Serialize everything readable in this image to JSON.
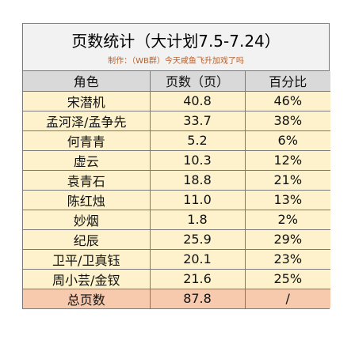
{
  "title": "页数统计（大计划7.5-7.24）",
  "subtitle": "制作：（WB群）今天咸鱼飞升加戏了吗",
  "headers": [
    "角色",
    "页数（页）",
    "百分比"
  ],
  "rows": [
    {
      "role": "宋潜机",
      "pages": "40.8",
      "percent": "46%"
    },
    {
      "role": "孟河泽/孟争先",
      "pages": "33.7",
      "percent": "38%"
    },
    {
      "role": "何青青",
      "pages": "5.2",
      "percent": "6%"
    },
    {
      "role": "虚云",
      "pages": "10.3",
      "percent": "12%"
    },
    {
      "role": "袁青石",
      "pages": "18.8",
      "percent": "21%"
    },
    {
      "role": "陈红烛",
      "pages": "11.0",
      "percent": "13%"
    },
    {
      "role": "妙烟",
      "pages": "1.8",
      "percent": "2%"
    },
    {
      "role": "纪辰",
      "pages": "25.9",
      "percent": "29%"
    },
    {
      "role": "卫平/卫真钰",
      "pages": "20.1",
      "percent": "23%"
    },
    {
      "role": "周小芸/金钗",
      "pages": "21.6",
      "percent": "25%"
    }
  ],
  "total": {
    "role": "总页数",
    "pages": "87.8",
    "percent": "/"
  },
  "colors": {
    "title_bg": "#f2f2f2",
    "header_bg": "#d9d9d9",
    "row_bg": "#fdf2cc",
    "total_bg": "#f7c9ad",
    "subtitle_color": "#b8602a"
  }
}
